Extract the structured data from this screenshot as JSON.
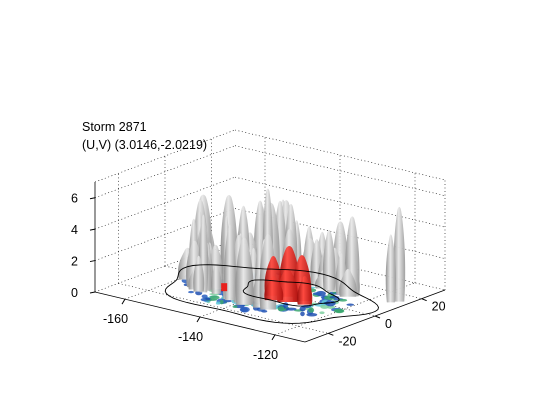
{
  "title": {
    "line1": "Storm 2871",
    "line2": "(U,V) (3.0146,-2.0219)"
  },
  "chart_data": {
    "type": "surface3d",
    "title": [
      "Storm 2871",
      "(U,V) (3.0146,-2.0219)"
    ],
    "x_axis": {
      "ticks": [
        -160,
        -140,
        -120
      ],
      "tick_labels": [
        "-160",
        "-140",
        "-120"
      ],
      "range": [
        -168,
        -112
      ]
    },
    "y_axis": {
      "ticks": [
        -20,
        0,
        20
      ],
      "tick_labels": [
        "-20",
        "0",
        "20"
      ],
      "range": [
        -30,
        30
      ]
    },
    "z_axis": {
      "ticks": [
        0,
        2,
        4,
        6
      ],
      "tick_labels": [
        "0",
        "2",
        "4",
        "6"
      ],
      "range": [
        0,
        7
      ]
    },
    "grid": true,
    "surfaces": [
      {
        "name": "",
        "color": "#b4b4b4",
        "description_only": true
      },
      {
        "name": "",
        "color": "#e8201c",
        "description_only": true
      }
    ],
    "colors": {
      "isosurface_gray": "#bdbdbd",
      "isosurface_red": "#e8201c",
      "base_blue": "#1e4fb0",
      "base_green": "#3aa66e",
      "base_cyan": "#5fc8d8",
      "contour": "#000000"
    }
  }
}
